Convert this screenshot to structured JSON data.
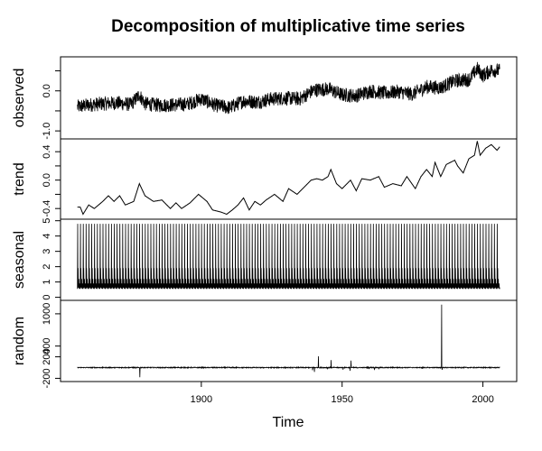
{
  "chart_data": {
    "type": "line",
    "title": "Decomposition of multiplicative time series",
    "xlabel": "Time",
    "xlim": [
      1850,
      2012
    ],
    "xticks": [
      1900,
      1950,
      2000
    ],
    "x_range_of_data": [
      1856,
      2006
    ],
    "frequency": "monthly",
    "grid": false,
    "legend": "none",
    "panels": [
      {
        "name": "observed",
        "ylim": [
          -1.2,
          0.85
        ],
        "yticks": [
          -1.0,
          0.0
        ],
        "tick_labels": [
          "-1.0",
          "0.0"
        ],
        "minor_ticks": [
          -0.5,
          0.5
        ],
        "anchors": [
          [
            1856,
            -0.4
          ],
          [
            1860,
            -0.35
          ],
          [
            1865,
            -0.32
          ],
          [
            1870,
            -0.3
          ],
          [
            1875,
            -0.34
          ],
          [
            1878,
            -0.1
          ],
          [
            1880,
            -0.32
          ],
          [
            1885,
            -0.36
          ],
          [
            1890,
            -0.35
          ],
          [
            1895,
            -0.33
          ],
          [
            1900,
            -0.2
          ],
          [
            1905,
            -0.36
          ],
          [
            1910,
            -0.42
          ],
          [
            1915,
            -0.25
          ],
          [
            1920,
            -0.28
          ],
          [
            1925,
            -0.2
          ],
          [
            1930,
            -0.18
          ],
          [
            1935,
            -0.2
          ],
          [
            1940,
            0.02
          ],
          [
            1945,
            0.05
          ],
          [
            1950,
            -0.1
          ],
          [
            1955,
            -0.12
          ],
          [
            1960,
            0.0
          ],
          [
            1965,
            -0.06
          ],
          [
            1970,
            -0.02
          ],
          [
            1975,
            -0.08
          ],
          [
            1980,
            0.1
          ],
          [
            1985,
            0.08
          ],
          [
            1990,
            0.25
          ],
          [
            1995,
            0.28
          ],
          [
            1998,
            0.55
          ],
          [
            2000,
            0.38
          ],
          [
            2003,
            0.52
          ],
          [
            2006,
            0.5
          ]
        ],
        "noise_amplitude": 0.18
      },
      {
        "name": "trend",
        "ylim": [
          -0.55,
          0.58
        ],
        "yticks": [
          -0.4,
          0.0,
          0.4
        ],
        "tick_labels": [
          "-0.4",
          "0.0",
          "0.4"
        ],
        "minor_ticks": [
          -0.2,
          0.2
        ],
        "anchors": [
          [
            1857,
            -0.38
          ],
          [
            1858,
            -0.48
          ],
          [
            1860,
            -0.35
          ],
          [
            1862,
            -0.4
          ],
          [
            1865,
            -0.3
          ],
          [
            1867,
            -0.22
          ],
          [
            1869,
            -0.3
          ],
          [
            1871,
            -0.22
          ],
          [
            1873,
            -0.35
          ],
          [
            1876,
            -0.3
          ],
          [
            1878,
            -0.05
          ],
          [
            1880,
            -0.22
          ],
          [
            1883,
            -0.3
          ],
          [
            1886,
            -0.28
          ],
          [
            1889,
            -0.4
          ],
          [
            1891,
            -0.32
          ],
          [
            1893,
            -0.4
          ],
          [
            1896,
            -0.32
          ],
          [
            1899,
            -0.2
          ],
          [
            1902,
            -0.3
          ],
          [
            1904,
            -0.42
          ],
          [
            1907,
            -0.45
          ],
          [
            1909,
            -0.48
          ],
          [
            1911,
            -0.42
          ],
          [
            1913,
            -0.35
          ],
          [
            1915,
            -0.25
          ],
          [
            1917,
            -0.42
          ],
          [
            1919,
            -0.3
          ],
          [
            1921,
            -0.35
          ],
          [
            1923,
            -0.28
          ],
          [
            1926,
            -0.2
          ],
          [
            1929,
            -0.3
          ],
          [
            1931,
            -0.12
          ],
          [
            1934,
            -0.2
          ],
          [
            1937,
            -0.08
          ],
          [
            1939,
            0.0
          ],
          [
            1941,
            0.02
          ],
          [
            1943,
            0.0
          ],
          [
            1945,
            0.05
          ],
          [
            1946,
            0.15
          ],
          [
            1948,
            -0.05
          ],
          [
            1950,
            -0.12
          ],
          [
            1953,
            0.0
          ],
          [
            1955,
            -0.15
          ],
          [
            1957,
            0.02
          ],
          [
            1960,
            0.0
          ],
          [
            1963,
            0.05
          ],
          [
            1965,
            -0.1
          ],
          [
            1968,
            -0.05
          ],
          [
            1971,
            -0.08
          ],
          [
            1973,
            0.05
          ],
          [
            1976,
            -0.12
          ],
          [
            1978,
            0.05
          ],
          [
            1980,
            0.15
          ],
          [
            1982,
            0.05
          ],
          [
            1983,
            0.25
          ],
          [
            1985,
            0.05
          ],
          [
            1987,
            0.22
          ],
          [
            1990,
            0.28
          ],
          [
            1991,
            0.2
          ],
          [
            1993,
            0.1
          ],
          [
            1995,
            0.3
          ],
          [
            1997,
            0.35
          ],
          [
            1998,
            0.55
          ],
          [
            1999,
            0.35
          ],
          [
            2001,
            0.45
          ],
          [
            2003,
            0.5
          ],
          [
            2005,
            0.42
          ],
          [
            2006,
            0.47
          ]
        ],
        "noise_amplitude": 0.0
      },
      {
        "name": "seasonal",
        "ylim": [
          -0.2,
          5.1
        ],
        "yticks": [
          0,
          1,
          2,
          3,
          4,
          5
        ],
        "tick_labels": [
          "0",
          "1",
          "2",
          "3",
          "4",
          "5"
        ],
        "seasonal_pattern": [
          0.55,
          4.8,
          0.6,
          1.9,
          0.7,
          0.65,
          1.2,
          0.58,
          0.75,
          0.9,
          0.6,
          0.62
        ]
      },
      {
        "name": "random",
        "ylim": [
          -260,
          1250
        ],
        "yticks": [
          -200,
          200,
          400,
          1000
        ],
        "tick_labels": [
          "-200",
          "200",
          "400",
          "1000"
        ],
        "baseline": 0,
        "spikes": [
          [
            1878.2,
            -180
          ],
          [
            1939.5,
            -50
          ],
          [
            1940.2,
            -80
          ],
          [
            1941.6,
            210
          ],
          [
            1944.8,
            -30
          ],
          [
            1946.1,
            140
          ],
          [
            1950.3,
            -40
          ],
          [
            1952.8,
            -60
          ],
          [
            1953.2,
            130
          ],
          [
            1959.6,
            -25
          ],
          [
            1961.5,
            -45
          ],
          [
            1963.0,
            -30
          ],
          [
            1978.5,
            -20
          ],
          [
            1985.3,
            1170
          ],
          [
            1985.5,
            -40
          ]
        ],
        "noise_amplitude": 8
      }
    ]
  }
}
